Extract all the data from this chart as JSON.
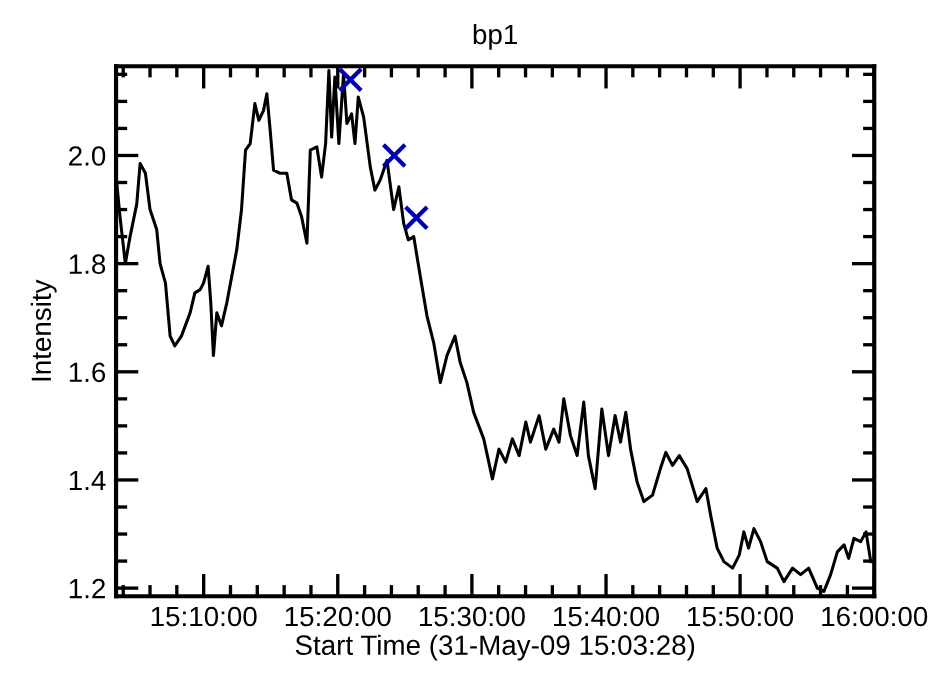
{
  "chart_data": {
    "type": "line",
    "title": "bp1",
    "xlabel": "Start Time (31-May-09 15:03:28)",
    "ylabel": "Intensity",
    "xlim": [
      15.0578,
      16.0
    ],
    "ylim": [
      1.185,
      2.165
    ],
    "xticks": [
      {
        "value": 15.1667,
        "label": "15:10:00"
      },
      {
        "value": 15.3333,
        "label": "15:20:00"
      },
      {
        "value": 15.5,
        "label": "15:30:00"
      },
      {
        "value": 15.6667,
        "label": "15:40:00"
      },
      {
        "value": 15.8333,
        "label": "15:50:00"
      },
      {
        "value": 16.0,
        "label": "16:00:00"
      },
      {
        "value": 15.0667,
        "label": null
      },
      {
        "value": 15.1,
        "label": null
      },
      {
        "value": 15.1333,
        "label": null
      },
      {
        "value": 15.2,
        "label": null
      },
      {
        "value": 15.2333,
        "label": null
      },
      {
        "value": 15.2667,
        "label": null
      },
      {
        "value": 15.3,
        "label": null
      },
      {
        "value": 15.3667,
        "label": null
      },
      {
        "value": 15.4,
        "label": null
      },
      {
        "value": 15.4333,
        "label": null
      },
      {
        "value": 15.4667,
        "label": null
      },
      {
        "value": 15.5333,
        "label": null
      },
      {
        "value": 15.5667,
        "label": null
      },
      {
        "value": 15.6,
        "label": null
      },
      {
        "value": 15.6333,
        "label": null
      },
      {
        "value": 15.7,
        "label": null
      },
      {
        "value": 15.7333,
        "label": null
      },
      {
        "value": 15.7667,
        "label": null
      },
      {
        "value": 15.8,
        "label": null
      },
      {
        "value": 15.8667,
        "label": null
      },
      {
        "value": 15.9,
        "label": null
      },
      {
        "value": 15.9333,
        "label": null
      },
      {
        "value": 15.9667,
        "label": null
      }
    ],
    "yticks": [
      1.2,
      1.4,
      1.6,
      1.8,
      {
        "value": 2.0,
        "label": "2.0"
      },
      {
        "value": 1.25,
        "label": null
      },
      {
        "value": 1.3,
        "label": null
      },
      {
        "value": 1.35,
        "label": null
      },
      {
        "value": 1.45,
        "label": null
      },
      {
        "value": 1.5,
        "label": null
      },
      {
        "value": 1.55,
        "label": null
      },
      {
        "value": 1.65,
        "label": null
      },
      {
        "value": 1.7,
        "label": null
      },
      {
        "value": 1.75,
        "label": null
      },
      {
        "value": 1.85,
        "label": null
      },
      {
        "value": 1.9,
        "label": null
      },
      {
        "value": 1.95,
        "label": null
      },
      {
        "value": 2.05,
        "label": null
      },
      {
        "value": 2.1,
        "label": null
      },
      {
        "value": 2.15,
        "label": null
      }
    ],
    "grid": false,
    "legend": false,
    "series": [
      {
        "color": "#000000",
        "x": [
          15.0583,
          15.0627,
          15.0693,
          15.0752,
          15.0835,
          15.0877,
          15.0943,
          15.1,
          15.1083,
          15.1125,
          15.1192,
          15.125,
          15.1308,
          15.139,
          15.1498,
          15.1557,
          15.1623,
          15.1665,
          15.1722,
          15.1755,
          15.1788,
          15.183,
          15.1888,
          15.1955,
          15.2078,
          15.2137,
          15.2187,
          15.2245,
          15.2303,
          15.2352,
          15.241,
          15.2452,
          15.2493,
          15.2535,
          15.2618,
          15.27,
          15.2758,
          15.2825,
          15.2883,
          15.295,
          15.2992,
          15.3073,
          15.3132,
          15.3182,
          15.3223,
          15.3257,
          15.3297,
          15.3347,
          15.3405,
          15.3447,
          15.3505,
          15.3547,
          15.3588,
          15.3655,
          15.3737,
          15.3795,
          15.3862,
          15.3945,
          15.4027,
          15.4093,
          15.4152,
          15.421,
          15.4277,
          15.4358,
          15.4442,
          15.4525,
          15.4608,
          15.469,
          15.479,
          15.4855,
          15.4938,
          15.5022,
          15.5147,
          15.5255,
          15.5337,
          15.542,
          15.5503,
          15.5587,
          15.567,
          15.5728,
          15.5835,
          15.5918,
          15.6017,
          15.6083,
          15.6142,
          15.6225,
          15.6308,
          15.639,
          15.6448,
          15.6532,
          15.6615,
          15.6698,
          15.678,
          15.6847,
          15.6913,
          15.6972,
          15.7053,
          15.7137,
          15.7245,
          15.7343,
          15.741,
          15.7493,
          15.7577,
          15.7675,
          15.78,
          15.7908,
          15.7967,
          15.8048,
          15.8132,
          15.824,
          15.8322,
          15.838,
          15.8438,
          15.8505,
          15.8588,
          15.867,
          15.8795,
          15.8878,
          15.8985,
          15.9085,
          15.9185,
          15.9293,
          15.9375,
          15.9458,
          15.9542,
          15.9625,
          15.9682,
          15.9748,
          15.9832,
          15.9898,
          15.9957
        ],
        "values": [
          1.955,
          1.887,
          1.8,
          1.85,
          1.91,
          1.985,
          1.967,
          1.9,
          1.863,
          1.8,
          1.764,
          1.666,
          1.648,
          1.666,
          1.709,
          1.746,
          1.752,
          1.764,
          1.795,
          1.728,
          1.63,
          1.709,
          1.685,
          1.728,
          1.826,
          1.9,
          2.01,
          2.022,
          2.096,
          2.065,
          2.083,
          2.114,
          2.047,
          1.973,
          1.967,
          1.967,
          1.918,
          1.912,
          1.887,
          1.838,
          2.01,
          2.016,
          1.96,
          2.022,
          2.157,
          2.034,
          2.145,
          2.022,
          2.151,
          2.059,
          2.077,
          2.022,
          2.108,
          2.071,
          1.979,
          1.936,
          1.955,
          1.991,
          1.9,
          1.942,
          1.875,
          1.844,
          1.85,
          1.777,
          1.703,
          1.654,
          1.58,
          1.63,
          1.666,
          1.617,
          1.58,
          1.525,
          1.476,
          1.402,
          1.457,
          1.433,
          1.476,
          1.445,
          1.507,
          1.47,
          1.519,
          1.457,
          1.494,
          1.47,
          1.55,
          1.482,
          1.445,
          1.544,
          1.445,
          1.384,
          1.531,
          1.445,
          1.519,
          1.47,
          1.525,
          1.457,
          1.396,
          1.36,
          1.372,
          1.421,
          1.451,
          1.427,
          1.445,
          1.421,
          1.36,
          1.384,
          1.335,
          1.274,
          1.249,
          1.237,
          1.261,
          1.304,
          1.274,
          1.31,
          1.286,
          1.249,
          1.237,
          1.212,
          1.237,
          1.225,
          1.237,
          1.2,
          1.194,
          1.225,
          1.267,
          1.28,
          1.255,
          1.292,
          1.286,
          1.304,
          1.249
        ]
      },
      {
        "type": "scatter",
        "marker": "cross",
        "color": "#0000b0",
        "x": [
          15.349,
          15.4035,
          15.431
        ],
        "values": [
          2.14,
          2.0,
          1.885
        ]
      }
    ]
  }
}
